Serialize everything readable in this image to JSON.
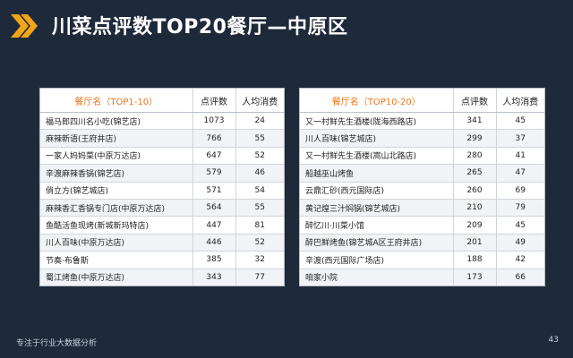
{
  "title": "川菜点评数TOP20餐厅—中原区",
  "colors": {
    "accent": "#f2a516",
    "background": "#1e293a",
    "header_highlight": "#e8761b"
  },
  "icons": {
    "title_marker": "double-chevron-right-icon"
  },
  "left_table": {
    "headers": [
      "餐厅名（TOP1-10）",
      "点评数",
      "人均消费"
    ],
    "rows": [
      [
        "福马郎四川名小吃(锦艺店)",
        "1073",
        "24"
      ],
      [
        "麻辣新语(王府井店)",
        "766",
        "55"
      ],
      [
        "一家人妈妈菜(中原万达店)",
        "647",
        "52"
      ],
      [
        "辛渡麻辣香锅(锦艺店)",
        "579",
        "46"
      ],
      [
        "俏立方(锦艺城店)",
        "571",
        "54"
      ],
      [
        "麻辣香汇香锅专门店(中原万达店)",
        "564",
        "55"
      ],
      [
        "鱼酷活鱼现烤(新城新玛特店)",
        "447",
        "81"
      ],
      [
        "川人百味(中原万达店)",
        "446",
        "52"
      ],
      [
        "节奏·布鲁斯",
        "385",
        "32"
      ],
      [
        "蜀江烤鱼(中原万达店)",
        "343",
        "77"
      ]
    ]
  },
  "right_table": {
    "headers": [
      "餐厅名（TOP10-20）",
      "点评数",
      "人均消费"
    ],
    "rows": [
      [
        "又一村鲜先生酒楼(陇海西路店)",
        "341",
        "45"
      ],
      [
        "川人百味(锦艺城店)",
        "299",
        "37"
      ],
      [
        "又一村鲜先生酒楼(嵩山北路店)",
        "280",
        "41"
      ],
      [
        "船越巫山烤鱼",
        "265",
        "47"
      ],
      [
        "云鼎汇砂(西元国际店)",
        "260",
        "69"
      ],
      [
        "黄记煌三汁焖锅(锦艺城店)",
        "210",
        "79"
      ],
      [
        "醉忆川·川菜小馆",
        "209",
        "45"
      ],
      [
        "醉巴鲜烤鱼(锦艺城A区王府井店)",
        "201",
        "49"
      ],
      [
        "辛渡(西元国际广场店)",
        "188",
        "42"
      ],
      [
        "咱家小院",
        "173",
        "66"
      ]
    ]
  },
  "footer": {
    "left": "专注于行业大数据分析",
    "page_number": "43"
  }
}
